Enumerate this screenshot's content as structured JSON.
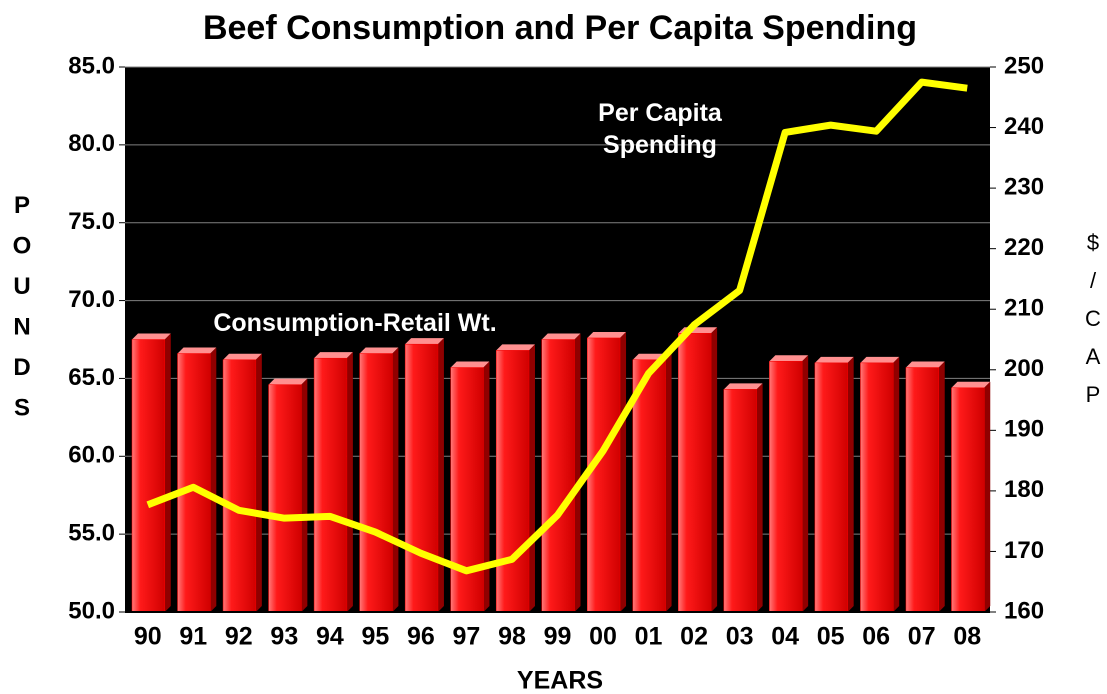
{
  "chart_data": {
    "type": "bar_line",
    "title": "Beef Consumption and Per Capita Spending",
    "x_label": "YEARS",
    "y_label": "POUNDS",
    "y2_label": "$/CAP",
    "categories": [
      "90",
      "91",
      "92",
      "93",
      "94",
      "95",
      "96",
      "97",
      "98",
      "99",
      "00",
      "01",
      "02",
      "03",
      "04",
      "05",
      "06",
      "07",
      "08"
    ],
    "series": [
      {
        "name": "Consumption-Retail Wt.",
        "type": "bar",
        "color": "#ff0000",
        "values": [
          67.5,
          66.6,
          66.2,
          64.6,
          66.3,
          66.6,
          67.2,
          65.7,
          66.8,
          67.5,
          67.6,
          66.2,
          67.9,
          64.3,
          66.1,
          66.0,
          66.0,
          65.7,
          64.4
        ]
      },
      {
        "name": "Per Capita Spending",
        "type": "line",
        "axis": "y2",
        "color": "#ffff00",
        "values": [
          177.7,
          180.6,
          176.8,
          175.5,
          175.8,
          173.2,
          169.7,
          166.8,
          168.7,
          176.0,
          186.6,
          199.4,
          207.4,
          213.1,
          239.2,
          240.4,
          239.4,
          247.5,
          246.5
        ]
      }
    ],
    "ylim": [
      50,
      85
    ],
    "yticks": [
      {
        "value": 50,
        "label": "50.0"
      },
      {
        "value": 55,
        "label": "55.0"
      },
      {
        "value": 60,
        "label": "60.0"
      },
      {
        "value": 65,
        "label": "65.0"
      },
      {
        "value": 70,
        "label": "70.0"
      },
      {
        "value": 75,
        "label": "75.0"
      },
      {
        "value": 80,
        "label": "80.0"
      },
      {
        "value": 85,
        "label": "85.0"
      }
    ],
    "y2lim": [
      160,
      250
    ],
    "y2ticks": [
      160,
      170,
      180,
      190,
      200,
      210,
      220,
      230,
      240,
      250
    ],
    "grid": true,
    "background": "#000000"
  }
}
